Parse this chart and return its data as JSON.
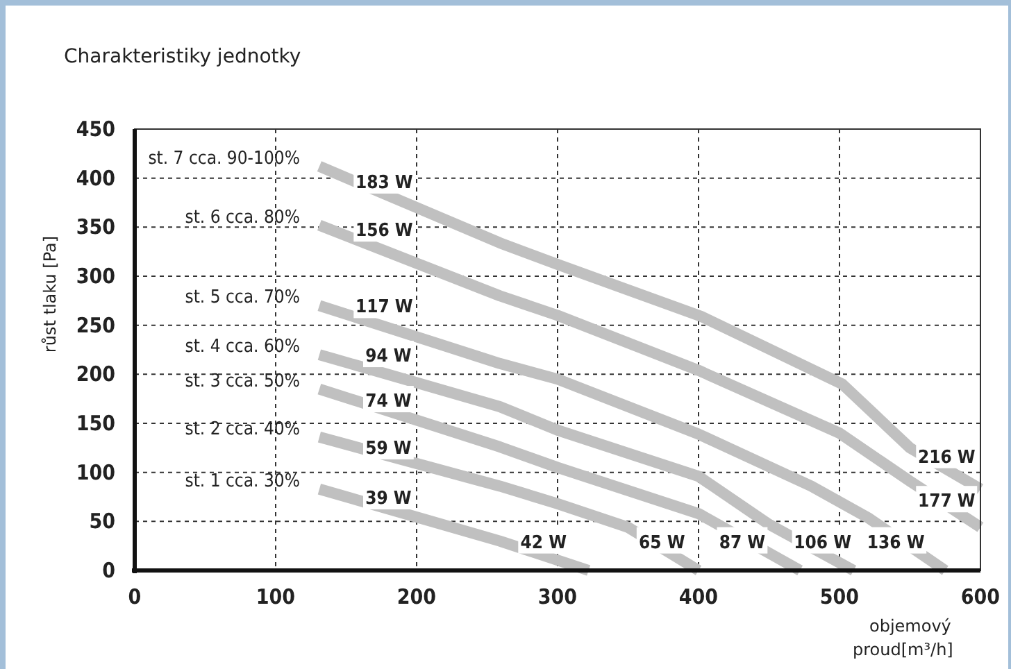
{
  "chart_data": {
    "type": "line",
    "title": "Charakteristiky jednotky",
    "xlabel": "objemový proud[m³/h]",
    "ylabel": "růst tlaku [Pa]",
    "xlim": [
      0,
      600
    ],
    "xticks": [
      0,
      100,
      200,
      300,
      400,
      500,
      600
    ],
    "ylim": [
      0,
      450
    ],
    "yticks": [
      0,
      50,
      100,
      150,
      200,
      250,
      300,
      350,
      400,
      450
    ],
    "grid": true,
    "line_style": "solid",
    "marker": "none",
    "series": [
      {
        "name": "st. 7 cca. 90-100%",
        "color": "#c0c0c0",
        "x": [
          131,
          259,
          300,
          402,
          502,
          550,
          600
        ],
        "values": [
          412,
          334,
          312,
          259,
          190,
          125,
          83
        ]
      },
      {
        "name": "st. 6 cca. 80%",
        "color": "#c0c0c0",
        "x": [
          131,
          259,
          300,
          400,
          500,
          550,
          600
        ],
        "values": [
          352,
          280,
          260,
          204,
          140,
          91,
          44
        ]
      },
      {
        "name": "st. 5 cca. 70%",
        "color": "#c0c0c0",
        "x": [
          131,
          259,
          300,
          400,
          480,
          520,
          575
        ],
        "values": [
          270,
          211,
          195,
          139,
          86,
          54,
          0
        ]
      },
      {
        "name": "st. 4 cca. 60%",
        "color": "#c0c0c0",
        "x": [
          131,
          259,
          300,
          400,
          450,
          510
        ],
        "values": [
          220,
          167,
          143,
          96,
          47,
          0
        ]
      },
      {
        "name": "st. 3 cca. 50%",
        "color": "#c0c0c0",
        "x": [
          131,
          259,
          300,
          400,
          472
        ],
        "values": [
          185,
          126,
          105,
          58,
          0
        ]
      },
      {
        "name": "st. 2 cca. 40%",
        "color": "#c0c0c0",
        "x": [
          131,
          259,
          300,
          350,
          400
        ],
        "values": [
          136,
          86,
          68,
          44,
          0
        ]
      },
      {
        "name": "st. 1 cca. 30%",
        "color": "#c0c0c0",
        "x": [
          131,
          259,
          322
        ],
        "values": [
          83,
          30,
          0
        ]
      }
    ],
    "annotations": [
      {
        "text": "183 W",
        "x": 177,
        "y": 397
      },
      {
        "text": "156 W",
        "x": 177,
        "y": 348
      },
      {
        "text": "117 W",
        "x": 177,
        "y": 270
      },
      {
        "text": "94 W",
        "x": 180,
        "y": 220
      },
      {
        "text": "74 W",
        "x": 180,
        "y": 174
      },
      {
        "text": "59 W",
        "x": 180,
        "y": 126
      },
      {
        "text": "39 W",
        "x": 180,
        "y": 75
      },
      {
        "text": "216 W",
        "x": 576,
        "y": 117
      },
      {
        "text": "177 W",
        "x": 576,
        "y": 72
      },
      {
        "text": "42 W",
        "x": 290,
        "y": 30
      },
      {
        "text": "65 W",
        "x": 374,
        "y": 30
      },
      {
        "text": "87 W",
        "x": 431,
        "y": 30
      },
      {
        "text": "106 W",
        "x": 488,
        "y": 30
      },
      {
        "text": "136 W",
        "x": 540,
        "y": 30
      }
    ]
  }
}
